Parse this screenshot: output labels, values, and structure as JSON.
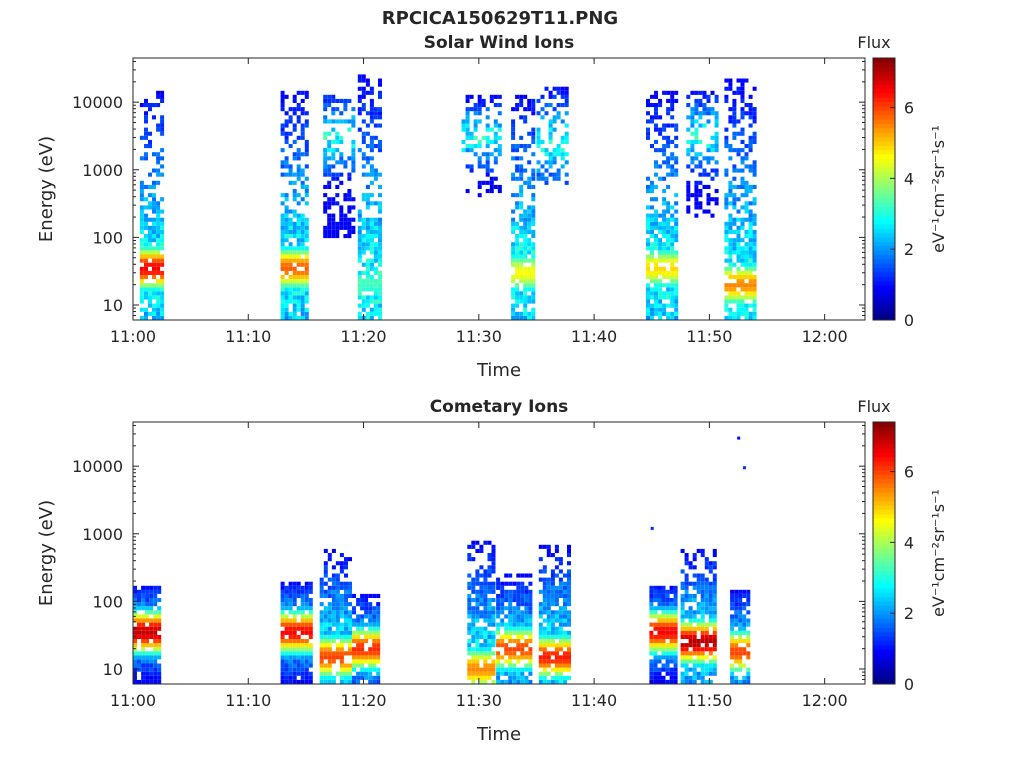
{
  "figure_title": "RPCICA150629T11.PNG",
  "colormap": [
    "#00007f",
    "#0000ff",
    "#007fff",
    "#00ffff",
    "#7fff7f",
    "#ffff00",
    "#ff7f00",
    "#ff0000",
    "#7f0000"
  ],
  "chart_data": [
    {
      "type": "heatmap",
      "title": "Solar Wind Ions",
      "xlabel": "Time",
      "ylabel": "Energy (eV)",
      "x_ticks": [
        "11:00",
        "11:10",
        "11:20",
        "11:30",
        "11:40",
        "11:50",
        "12:00"
      ],
      "x_range_minutes": [
        0,
        63.5
      ],
      "y_scale": "log",
      "y_ticks": [
        10,
        100,
        1000,
        10000
      ],
      "y_tick_labels": [
        "10",
        "100",
        "1000",
        "10000"
      ],
      "y_range": [
        6,
        45000
      ],
      "colorbar": {
        "label": "Flux",
        "unit": "eV⁻¹cm⁻²sr⁻¹s⁻¹",
        "ticks": [
          "0",
          "2",
          "4",
          "6"
        ],
        "range": [
          0,
          7.4
        ]
      },
      "bursts": [
        {
          "t_start": 0.6,
          "t_end": 2.4,
          "e_low": 6,
          "e_high": 15000,
          "peak_flux": 6.5,
          "peak_energy": 35
        },
        {
          "t_start": 12.8,
          "t_end": 15.2,
          "e_low": 6,
          "e_high": 15000,
          "peak_flux": 5.8,
          "peak_energy": 35
        },
        {
          "t_start": 16.5,
          "t_end": 19.0,
          "e_low": 100,
          "e_high": 15000,
          "peak_flux": 1.5,
          "peak_energy": 3000
        },
        {
          "t_start": 19.5,
          "t_end": 21.6,
          "e_low": 6,
          "e_high": 25000,
          "peak_flux": 3.2,
          "peak_energy": 20
        },
        {
          "t_start": 28.5,
          "t_end": 31.8,
          "e_low": 400,
          "e_high": 12000,
          "peak_flux": 2.3,
          "peak_energy": 3000
        },
        {
          "t_start": 32.8,
          "t_end": 34.9,
          "e_low": 6,
          "e_high": 15000,
          "peak_flux": 4.6,
          "peak_energy": 30
        },
        {
          "t_start": 35.0,
          "t_end": 37.7,
          "e_low": 600,
          "e_high": 17000,
          "peak_flux": 2.6,
          "peak_energy": 2500
        },
        {
          "t_start": 44.5,
          "t_end": 47.2,
          "e_low": 6,
          "e_high": 15000,
          "peak_flux": 4.9,
          "peak_energy": 35
        },
        {
          "t_start": 48.0,
          "t_end": 50.5,
          "e_low": 200,
          "e_high": 15000,
          "peak_flux": 1.6,
          "peak_energy": 3000
        },
        {
          "t_start": 51.3,
          "t_end": 53.8,
          "e_low": 6,
          "e_high": 22000,
          "peak_flux": 5.5,
          "peak_energy": 20
        }
      ]
    },
    {
      "type": "heatmap",
      "title": "Cometary Ions",
      "xlabel": "Time",
      "ylabel": "Energy (eV)",
      "x_ticks": [
        "11:00",
        "11:10",
        "11:20",
        "11:30",
        "11:40",
        "11:50",
        "12:00"
      ],
      "x_range_minutes": [
        0,
        63.5
      ],
      "y_scale": "log",
      "y_ticks": [
        10,
        100,
        1000,
        10000
      ],
      "y_tick_labels": [
        "10",
        "100",
        "1000",
        "10000"
      ],
      "y_range": [
        6,
        45000
      ],
      "colorbar": {
        "label": "Flux",
        "unit": "eV⁻¹cm⁻²sr⁻¹s⁻¹",
        "ticks": [
          "0",
          "2",
          "4",
          "6"
        ],
        "range": [
          0,
          7.4
        ]
      },
      "bursts": [
        {
          "t_start": -0.2,
          "t_end": 2.2,
          "e_low": 6,
          "e_high": 180,
          "peak_flux": 6.9,
          "peak_energy": 35
        },
        {
          "t_start": 12.8,
          "t_end": 15.3,
          "e_low": 6,
          "e_high": 200,
          "peak_flux": 6.5,
          "peak_energy": 35
        },
        {
          "t_start": 16.2,
          "t_end": 18.8,
          "e_low": 6,
          "e_high": 600,
          "peak_flux": 6.0,
          "peak_energy": 15
        },
        {
          "t_start": 19.0,
          "t_end": 21.3,
          "e_low": 6,
          "e_high": 130,
          "peak_flux": 6.2,
          "peak_energy": 20
        },
        {
          "t_start": 29.0,
          "t_end": 31.3,
          "e_low": 6,
          "e_high": 800,
          "peak_flux": 5.5,
          "peak_energy": 10
        },
        {
          "t_start": 31.5,
          "t_end": 34.6,
          "e_low": 6,
          "e_high": 250,
          "peak_flux": 6.0,
          "peak_energy": 20
        },
        {
          "t_start": 35.2,
          "t_end": 37.8,
          "e_low": 6,
          "e_high": 700,
          "peak_flux": 6.3,
          "peak_energy": 15
        },
        {
          "t_start": 44.8,
          "t_end": 47.2,
          "e_low": 6,
          "e_high": 180,
          "peak_flux": 6.5,
          "peak_energy": 35
        },
        {
          "t_start": 47.5,
          "t_end": 50.5,
          "e_low": 6,
          "e_high": 600,
          "peak_flux": 7.0,
          "peak_energy": 25
        },
        {
          "t_start": 51.8,
          "t_end": 53.5,
          "e_low": 6,
          "e_high": 150,
          "peak_flux": 6.0,
          "peak_energy": 18
        }
      ],
      "isolated_points": [
        {
          "t": 45.0,
          "energy": 1200,
          "flux": 1.2
        },
        {
          "t": 52.5,
          "energy": 26000,
          "flux": 1.0
        },
        {
          "t": 53.0,
          "energy": 9500,
          "flux": 1.3
        }
      ]
    }
  ]
}
